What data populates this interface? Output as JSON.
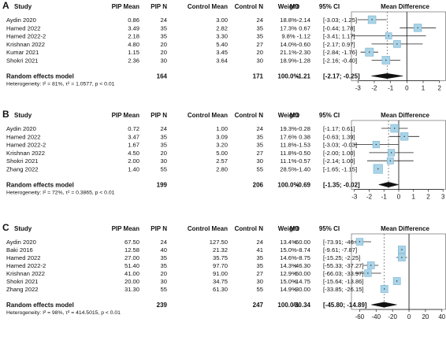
{
  "headers": {
    "study": "Study",
    "pip_mean": "PIP Mean",
    "pip_n": "PIP N",
    "control_mean": "Control Mean",
    "control_n": "Control N",
    "weight": "Weight",
    "md": "MD",
    "ci": "95% CI",
    "mean_difference": "Mean Difference"
  },
  "chart_data": [
    {
      "type": "forest",
      "panel": "A",
      "x_ticks": [
        -3,
        -2,
        -1,
        0,
        1,
        2
      ],
      "xlim": [
        -3.4,
        2.4
      ],
      "reference_line": 0,
      "studies": [
        {
          "study": "Aydin 2020",
          "pip_mean": "0.86",
          "pip_n": "24",
          "control_mean": "3.00",
          "control_n": "24",
          "weight": "18.8%",
          "md_text": "-2.14",
          "ci_text": "[-3.03; -1.25]",
          "md": -2.14,
          "lo": -3.03,
          "hi": -1.25,
          "w": 18.8
        },
        {
          "study": "Hamed 2022",
          "pip_mean": "3.49",
          "pip_n": "35",
          "control_mean": "2.82",
          "control_n": "35",
          "weight": "17.3%",
          "md_text": "0.67",
          "ci_text": "[-0.44; 1.78]",
          "md": 0.67,
          "lo": -0.44,
          "hi": 1.78,
          "w": 17.3
        },
        {
          "study": "Hamed 2022-2",
          "pip_mean": "2.18",
          "pip_n": "35",
          "control_mean": "3.30",
          "control_n": "35",
          "weight": "9.8%",
          "md_text": "-1.12",
          "ci_text": "[-3.41; 1.17]",
          "md": -1.12,
          "lo": -3.41,
          "hi": 1.17,
          "w": 9.8
        },
        {
          "study": "Krishnan 2022",
          "pip_mean": "4.80",
          "pip_n": "20",
          "control_mean": "5.40",
          "control_n": "27",
          "weight": "14.0%",
          "md_text": "-0.60",
          "ci_text": "[-2.17; 0.97]",
          "md": -0.6,
          "lo": -2.17,
          "hi": 0.97,
          "w": 14.0
        },
        {
          "study": "Kumar 2021",
          "pip_mean": "1.15",
          "pip_n": "20",
          "control_mean": "3.45",
          "control_n": "20",
          "weight": "21.1%",
          "md_text": "-2.30",
          "ci_text": "[-2.84; -1.76]",
          "md": -2.3,
          "lo": -2.84,
          "hi": -1.76,
          "w": 21.1
        },
        {
          "study": "Shokri 2021",
          "pip_mean": "2.36",
          "pip_n": "30",
          "control_mean": "3.64",
          "control_n": "30",
          "weight": "18.9%",
          "md_text": "-1.28",
          "ci_text": "[-2.16; -0.40]",
          "md": -1.28,
          "lo": -2.16,
          "hi": -0.4,
          "w": 18.9
        }
      ],
      "summary": {
        "label": "Random effects model",
        "pip_n": "164",
        "control_n": "171",
        "weight": "100.0%",
        "md_text": "-1.21",
        "ci_text": "[-2.17; -0.25]",
        "md": -1.21,
        "lo": -2.17,
        "hi": -0.25
      },
      "heterogeneity": "Heterogeneity: I² = 81%, τ² = 1.0577, p < 0.01"
    },
    {
      "type": "forest",
      "panel": "B",
      "x_ticks": [
        -3,
        -2,
        -1,
        0,
        1,
        2,
        3
      ],
      "xlim": [
        -3.2,
        3.2
      ],
      "reference_line": 0,
      "studies": [
        {
          "study": "Aydin 2020",
          "pip_mean": "0.72",
          "pip_n": "24",
          "control_mean": "1.00",
          "control_n": "24",
          "weight": "19.3%",
          "md_text": "-0.28",
          "ci_text": "[-1.17; 0.61]",
          "md": -0.28,
          "lo": -1.17,
          "hi": 0.61,
          "w": 19.3
        },
        {
          "study": "Hamed 2022",
          "pip_mean": "3.47",
          "pip_n": "35",
          "control_mean": "3.09",
          "control_n": "35",
          "weight": "17.6%",
          "md_text": "0.38",
          "ci_text": "[-0.63; 1.39]",
          "md": 0.38,
          "lo": -0.63,
          "hi": 1.39,
          "w": 17.6
        },
        {
          "study": "Hamed 2022-2",
          "pip_mean": "1.67",
          "pip_n": "35",
          "control_mean": "3.20",
          "control_n": "35",
          "weight": "11.8%",
          "md_text": "-1.53",
          "ci_text": "[-3.03; -0.03]",
          "md": -1.53,
          "lo": -3.03,
          "hi": -0.03,
          "w": 11.8
        },
        {
          "study": "Krishnan 2022",
          "pip_mean": "4.50",
          "pip_n": "20",
          "control_mean": "5.00",
          "control_n": "27",
          "weight": "11.8%",
          "md_text": "-0.50",
          "ci_text": "[-2.00; 1.00]",
          "md": -0.5,
          "lo": -2.0,
          "hi": 1.0,
          "w": 11.8
        },
        {
          "study": "Shokri 2021",
          "pip_mean": "2.00",
          "pip_n": "30",
          "control_mean": "2.57",
          "control_n": "30",
          "weight": "11.1%",
          "md_text": "-0.57",
          "ci_text": "[-2.14; 1.00]",
          "md": -0.57,
          "lo": -2.14,
          "hi": 1.0,
          "w": 11.1
        },
        {
          "study": "Zhang 2022",
          "pip_mean": "1.40",
          "pip_n": "55",
          "control_mean": "2.80",
          "control_n": "55",
          "weight": "28.5%",
          "md_text": "-1.40",
          "ci_text": "[-1.65; -1.15]",
          "md": -1.4,
          "lo": -1.65,
          "hi": -1.15,
          "w": 28.5
        }
      ],
      "summary": {
        "label": "Random effects model",
        "pip_n": "199",
        "control_n": "206",
        "weight": "100.0%",
        "md_text": "-0.69",
        "ci_text": "[-1.35; -0.02]",
        "md": -0.69,
        "lo": -1.35,
        "hi": -0.02
      },
      "heterogeneity": "Heterogeneity: I² = 72%, τ² = 0.3865, p < 0.01"
    },
    {
      "type": "forest",
      "panel": "C",
      "x_ticks": [
        -60,
        -40,
        -20,
        0,
        20,
        40
      ],
      "xlim": [
        -70,
        45
      ],
      "reference_line": 0,
      "studies": [
        {
          "study": "Aydin 2020",
          "pip_mean": "67.50",
          "pip_n": "24",
          "control_mean": "127.50",
          "control_n": "24",
          "weight": "13.4%",
          "md_text": "-60.00",
          "ci_text": "[-73.91; -46.09]",
          "md": -60.0,
          "lo": -73.91,
          "hi": -46.09,
          "w": 13.4
        },
        {
          "study": "Baki 2016",
          "pip_mean": "12.58",
          "pip_n": "40",
          "control_mean": "21.32",
          "control_n": "41",
          "weight": "15.0%",
          "md_text": "-8.74",
          "ci_text": "[-9.61; -7.87]",
          "md": -8.74,
          "lo": -9.61,
          "hi": -7.87,
          "w": 15.0
        },
        {
          "study": "Hamed 2022",
          "pip_mean": "27.00",
          "pip_n": "35",
          "control_mean": "35.75",
          "control_n": "35",
          "weight": "14.6%",
          "md_text": "-8.75",
          "ci_text": "[-15.25; -2.25]",
          "md": -8.75,
          "lo": -15.25,
          "hi": -2.25,
          "w": 14.6
        },
        {
          "study": "Hamed 2022-2",
          "pip_mean": "51.40",
          "pip_n": "35",
          "control_mean": "97.70",
          "control_n": "35",
          "weight": "14.3%",
          "md_text": "-46.30",
          "ci_text": "[-55.33; -37.27]",
          "md": -46.3,
          "lo": -55.33,
          "hi": -37.27,
          "w": 14.3
        },
        {
          "study": "Krishnan 2022",
          "pip_mean": "41.00",
          "pip_n": "20",
          "control_mean": "91.00",
          "control_n": "27",
          "weight": "12.9%",
          "md_text": "-50.00",
          "ci_text": "[-66.03; -33.97]",
          "md": -50.0,
          "lo": -66.03,
          "hi": -33.97,
          "w": 12.9
        },
        {
          "study": "Shokri 2021",
          "pip_mean": "20.00",
          "pip_n": "30",
          "control_mean": "34.75",
          "control_n": "30",
          "weight": "15.0%",
          "md_text": "-14.75",
          "ci_text": "[-15.64; -13.86]",
          "md": -14.75,
          "lo": -15.64,
          "hi": -13.86,
          "w": 15.0
        },
        {
          "study": "Zhang 2022",
          "pip_mean": "31.30",
          "pip_n": "55",
          "control_mean": "61.30",
          "control_n": "55",
          "weight": "14.9%",
          "md_text": "-30.00",
          "ci_text": "[-33.85; -26.15]",
          "md": -30.0,
          "lo": -33.85,
          "hi": -26.15,
          "w": 14.9
        }
      ],
      "summary": {
        "label": "Random effects model",
        "pip_n": "239",
        "control_n": "247",
        "weight": "100.0%",
        "md_text": "-30.34",
        "ci_text": "[-45.80; -14.89]",
        "md": -30.34,
        "lo": -45.8,
        "hi": -14.89
      },
      "heterogeneity": "Heterogeneity: I² = 98%, τ² = 414.5015, p < 0.01"
    }
  ]
}
